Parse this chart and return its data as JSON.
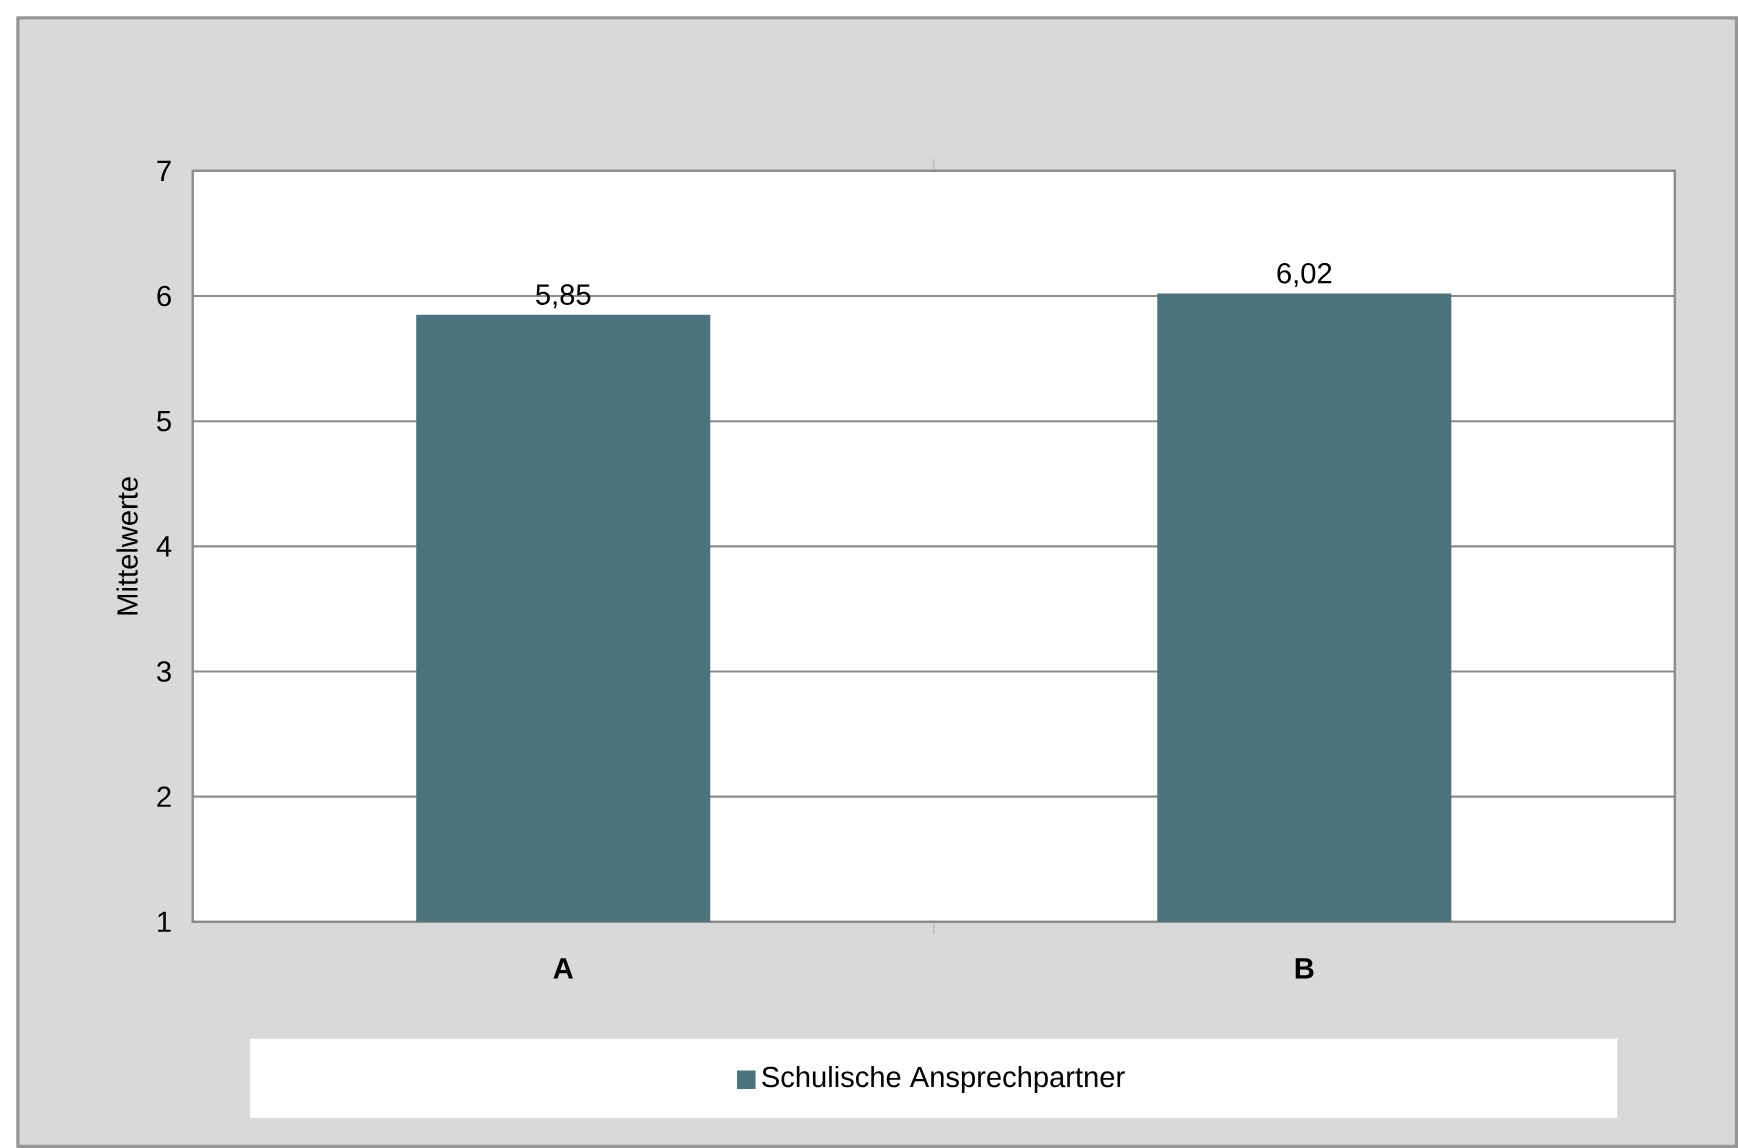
{
  "chart_data": {
    "type": "bar",
    "ylabel": "Mittelwerte",
    "categories": [
      "A",
      "B"
    ],
    "series": [
      {
        "name": "Schulische Ansprechpartner",
        "color": "#4a737b",
        "values": [
          5.85,
          6.02
        ],
        "value_labels": [
          "5,85",
          "6,02"
        ]
      }
    ],
    "ylim": [
      1,
      7
    ],
    "yticks": [
      1,
      2,
      3,
      4,
      5,
      6,
      7
    ],
    "grid": "y",
    "legend": "bottom"
  }
}
